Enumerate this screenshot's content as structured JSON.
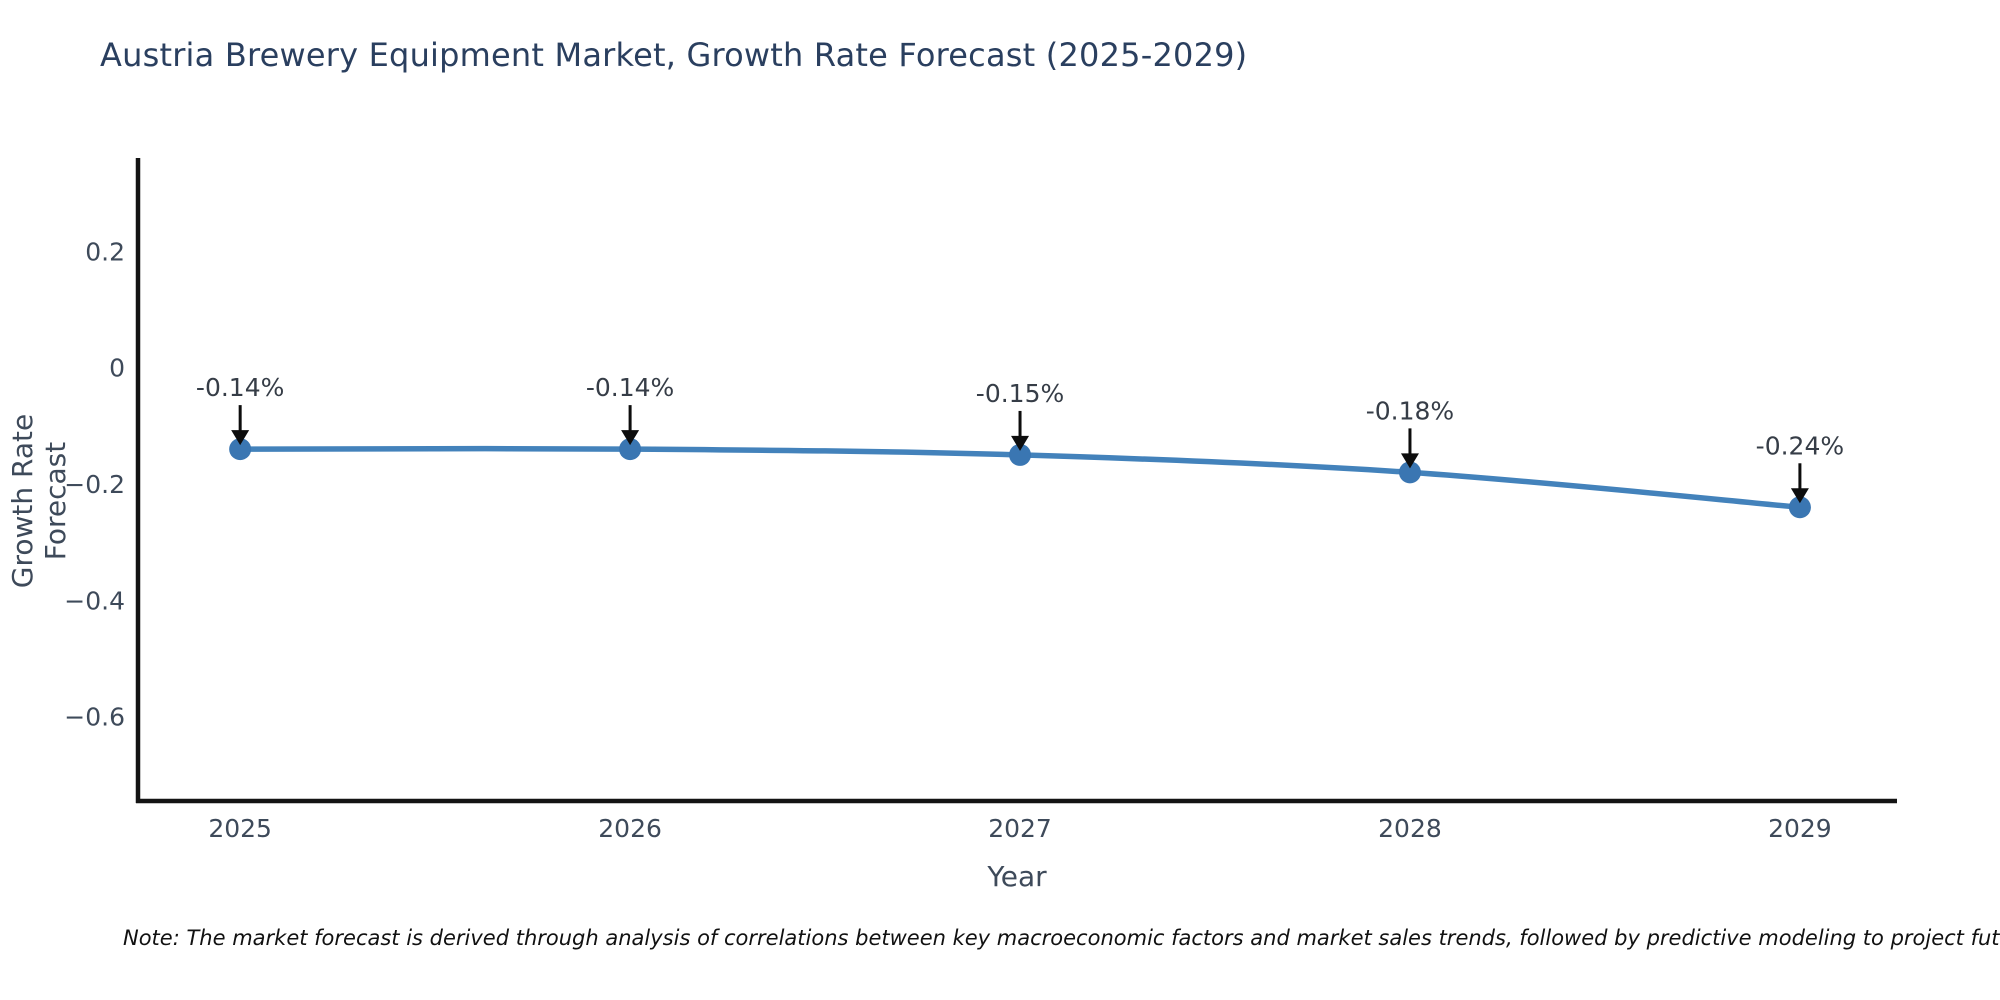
{
  "title": "Austria Brewery Equipment Market, Growth Rate Forecast (2025-2029)",
  "note": "Note: The market forecast is derived through analysis of correlations between key macroeconomic factors and market sales trends, followed by predictive modeling to project future sal",
  "colors": {
    "title": "#2a3f5f",
    "tick_label": "#3e4a5a",
    "axis_title": "#3e4a5a",
    "annotation_text": "#363d47",
    "note_text": "#111111",
    "spine": "#141414",
    "line": "#4382bb",
    "marker": "#3a76b2",
    "arrow": "#0d0d0d"
  },
  "chart_data": {
    "type": "line",
    "line_shape": "spline",
    "markers": true,
    "grid": false,
    "legend_position": "none",
    "title": "Austria Brewery Equipment Market, Growth Rate Forecast (2025-2029)",
    "xlabel": "Year",
    "ylabel": "Growth Rate Forecast",
    "x": [
      2025,
      2026,
      2027,
      2028,
      2029
    ],
    "x_tick_labels": [
      "2025",
      "2026",
      "2027",
      "2028",
      "2029"
    ],
    "values": [
      -0.14,
      -0.14,
      -0.15,
      -0.18,
      -0.24
    ],
    "point_labels": [
      "-0.14%",
      "-0.14%",
      "-0.15%",
      "-0.18%",
      "-0.24%"
    ],
    "y_ticks": [
      0.2,
      0,
      -0.2,
      -0.4,
      -0.6
    ],
    "y_tick_labels": [
      "0.2",
      "0",
      "−0.2",
      "−0.4",
      "−0.6"
    ],
    "xlim": [
      2024.738,
      2029.249
    ],
    "ylim": [
      -0.745,
      0.3605
    ]
  }
}
